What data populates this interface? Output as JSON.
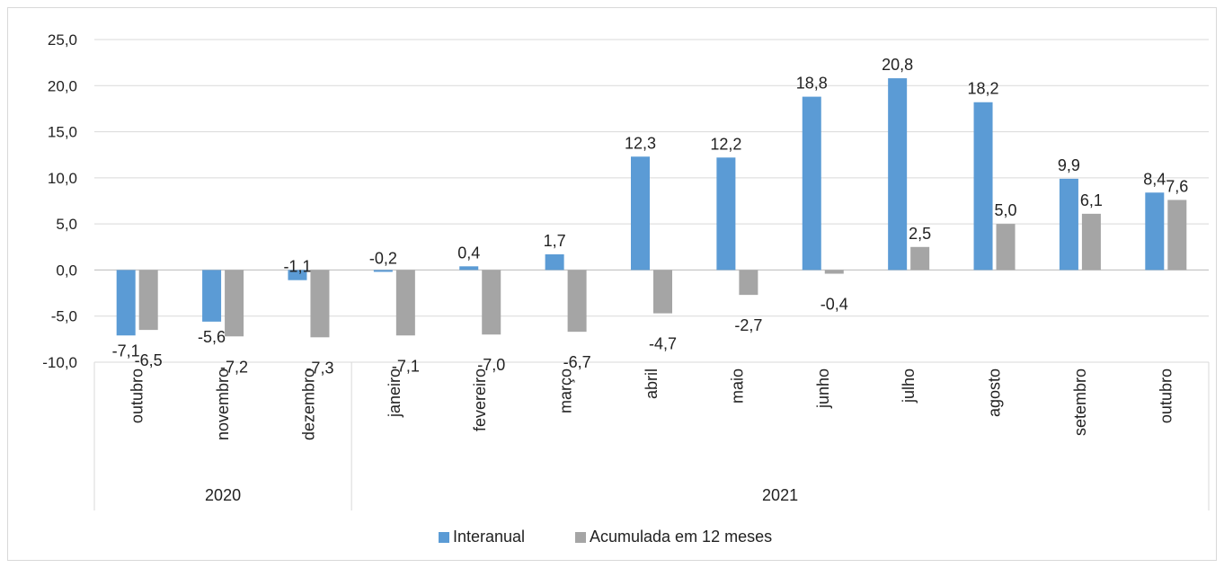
{
  "chart_data": {
    "type": "bar",
    "categories": [
      "outubro",
      "novembro",
      "dezembro",
      "janeiro",
      "fevereiro",
      "março",
      "abril",
      "maio",
      "junho",
      "julho",
      "agosto",
      "setembro",
      "outubro"
    ],
    "groups": [
      {
        "label": "2020",
        "count": 3
      },
      {
        "label": "2021",
        "count": 10
      }
    ],
    "series": [
      {
        "name": "Interanual",
        "color": "#5b9bd5",
        "values": [
          -7.1,
          -5.6,
          -1.1,
          -0.2,
          0.4,
          1.7,
          12.3,
          12.2,
          18.8,
          20.8,
          18.2,
          9.9,
          8.4
        ],
        "labels": [
          "-7,1",
          "-5,6",
          "-1,1",
          "-0,2",
          "0,4",
          "1,7",
          "12,3",
          "12,2",
          "18,8",
          "20,8",
          "18,2",
          "9,9",
          "8,4"
        ]
      },
      {
        "name": "Acumulada em 12 meses",
        "color": "#a5a5a5",
        "values": [
          -6.5,
          -7.2,
          -7.3,
          -7.1,
          -7.0,
          -6.7,
          -4.7,
          -2.7,
          -0.4,
          2.5,
          5.0,
          6.1,
          7.6
        ],
        "labels": [
          "-6,5",
          "-7,2",
          "-7,3",
          "-7,1",
          "-7,0",
          "-6,7",
          "-4,7",
          "-2,7",
          "-0,4",
          "2,5",
          "5,0",
          "6,1",
          "7,6"
        ]
      }
    ],
    "ylim": [
      -10,
      25
    ],
    "yticks": [
      -10,
      -5,
      0,
      5,
      10,
      15,
      20,
      25
    ],
    "ytick_labels": [
      "-10,0",
      "-5,0",
      "0,0",
      "5,0",
      "10,0",
      "15,0",
      "20,0",
      "25,0"
    ],
    "grid": true,
    "legend_position": "bottom"
  }
}
